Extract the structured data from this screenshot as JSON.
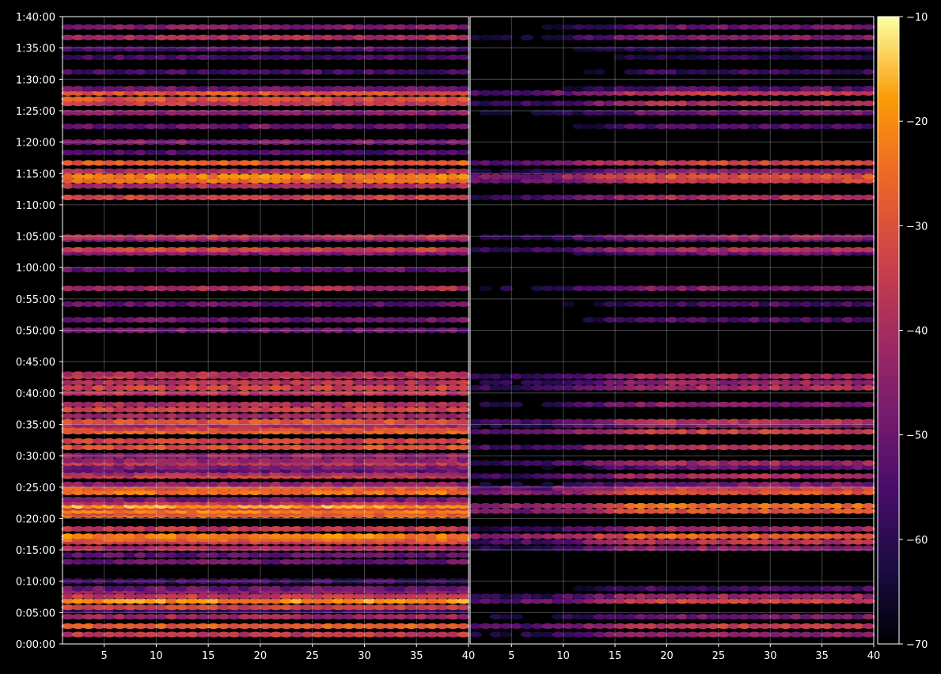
{
  "chart_data": {
    "type": "heatmap",
    "title": "",
    "xlabel": "",
    "ylabel": "",
    "background": "#000000",
    "grid": true,
    "colormap": "inferno",
    "panels": [
      {
        "name": "left",
        "xlim": [
          1,
          40
        ],
        "x_ticks": [
          {
            "value": 5,
            "label": "5"
          },
          {
            "value": 10,
            "label": "10"
          },
          {
            "value": 15,
            "label": "15"
          },
          {
            "value": 20,
            "label": "20"
          },
          {
            "value": 25,
            "label": "25"
          },
          {
            "value": 30,
            "label": "30"
          },
          {
            "value": 35,
            "label": "35"
          },
          {
            "value": 40,
            "label": "40"
          }
        ],
        "bands": [
          {
            "t": 90,
            "v": -36
          },
          {
            "t": 170,
            "v": -28
          },
          {
            "t": 260,
            "v": -42
          },
          {
            "t": 320,
            "v": -58
          },
          {
            "t": 350,
            "v": -34
          },
          {
            "t": 410,
            "v": -20
          },
          {
            "t": 455,
            "v": -36
          },
          {
            "t": 500,
            "v": -46
          },
          {
            "t": 530,
            "v": -50
          },
          {
            "t": 600,
            "v": -58
          },
          {
            "t": 785,
            "v": -50
          },
          {
            "t": 850,
            "v": -52
          },
          {
            "t": 915,
            "v": -40
          },
          {
            "t": 975,
            "v": -34
          },
          {
            "t": 1000,
            "v": -28
          },
          {
            "t": 1030,
            "v": -22
          },
          {
            "t": 1100,
            "v": -36
          },
          {
            "t": 1230,
            "v": -26
          },
          {
            "t": 1250,
            "v": -30
          },
          {
            "t": 1270,
            "v": -22
          },
          {
            "t": 1300,
            "v": -32
          },
          {
            "t": 1320,
            "v": -18
          },
          {
            "t": 1350,
            "v": -36
          },
          {
            "t": 1380,
            "v": -48
          },
          {
            "t": 1450,
            "v": -24
          },
          {
            "t": 1490,
            "v": -28
          },
          {
            "t": 1525,
            "v": -44
          },
          {
            "t": 1605,
            "v": -34
          },
          {
            "t": 1630,
            "v": -40
          },
          {
            "t": 1660,
            "v": -52
          },
          {
            "t": 1690,
            "v": -48
          },
          {
            "t": 1730,
            "v": -36
          },
          {
            "t": 1755,
            "v": -44
          },
          {
            "t": 1800,
            "v": -44
          },
          {
            "t": 1880,
            "v": -30
          },
          {
            "t": 1940,
            "v": -34
          },
          {
            "t": 2030,
            "v": -26
          },
          {
            "t": 2060,
            "v": -32
          },
          {
            "t": 2090,
            "v": -40
          },
          {
            "t": 2125,
            "v": -30
          },
          {
            "t": 2180,
            "v": -42
          },
          {
            "t": 2240,
            "v": -34
          },
          {
            "t": 2290,
            "v": -40
          },
          {
            "t": 2400,
            "v": -38
          },
          {
            "t": 2450,
            "v": -34
          },
          {
            "t": 2500,
            "v": -38
          },
          {
            "t": 2560,
            "v": -36
          },
          {
            "t": 2580,
            "v": -40
          },
          {
            "t": 3000,
            "v": -50
          },
          {
            "t": 3100,
            "v": -50
          },
          {
            "t": 3250,
            "v": -52
          },
          {
            "t": 3400,
            "v": -40
          },
          {
            "t": 3580,
            "v": -52
          },
          {
            "t": 3740,
            "v": -48
          },
          {
            "t": 3770,
            "v": -34
          },
          {
            "t": 3870,
            "v": -48
          },
          {
            "t": 3890,
            "v": -38
          },
          {
            "t": 4270,
            "v": -34
          },
          {
            "t": 4380,
            "v": -40
          },
          {
            "t": 4430,
            "v": -26
          },
          {
            "t": 4470,
            "v": -22
          },
          {
            "t": 4520,
            "v": -40
          },
          {
            "t": 4600,
            "v": -28
          },
          {
            "t": 4700,
            "v": -54
          },
          {
            "t": 4800,
            "v": -48
          },
          {
            "t": 4950,
            "v": -50
          },
          {
            "t": 5080,
            "v": -46
          },
          {
            "t": 5170,
            "v": -36
          },
          {
            "t": 5210,
            "v": -30
          },
          {
            "t": 5270,
            "v": -30
          },
          {
            "t": 5310,
            "v": -50
          },
          {
            "t": 5470,
            "v": -56
          },
          {
            "t": 5610,
            "v": -56
          },
          {
            "t": 5690,
            "v": -54
          },
          {
            "t": 5800,
            "v": -40
          },
          {
            "t": 5900,
            "v": -46
          }
        ]
      },
      {
        "name": "right",
        "xlim": [
          1,
          40
        ],
        "x_ticks": [
          {
            "value": 5,
            "label": "5"
          },
          {
            "value": 10,
            "label": "10"
          },
          {
            "value": 15,
            "label": "15"
          },
          {
            "value": 20,
            "label": "20"
          },
          {
            "value": 25,
            "label": "25"
          },
          {
            "value": 30,
            "label": "30"
          },
          {
            "value": 35,
            "label": "35"
          },
          {
            "value": 40,
            "label": "40"
          }
        ],
        "bands": [
          {
            "t": 90,
            "v": -44
          },
          {
            "t": 170,
            "v": -36
          },
          {
            "t": 260,
            "v": -48
          },
          {
            "t": 410,
            "v": -34
          },
          {
            "t": 455,
            "v": -42
          },
          {
            "t": 530,
            "v": -56
          },
          {
            "t": 915,
            "v": -44
          },
          {
            "t": 975,
            "v": -38
          },
          {
            "t": 1030,
            "v": -28
          },
          {
            "t": 1100,
            "v": -42
          },
          {
            "t": 1270,
            "v": -30
          },
          {
            "t": 1320,
            "v": -26
          },
          {
            "t": 1450,
            "v": -30
          },
          {
            "t": 1490,
            "v": -34
          },
          {
            "t": 1525,
            "v": -48
          },
          {
            "t": 1605,
            "v": -40
          },
          {
            "t": 1690,
            "v": -52
          },
          {
            "t": 1730,
            "v": -42
          },
          {
            "t": 1880,
            "v": -38
          },
          {
            "t": 2030,
            "v": -34
          },
          {
            "t": 2090,
            "v": -46
          },
          {
            "t": 2125,
            "v": -38
          },
          {
            "t": 2290,
            "v": -46
          },
          {
            "t": 2450,
            "v": -40
          },
          {
            "t": 2500,
            "v": -44
          },
          {
            "t": 2560,
            "v": -42
          },
          {
            "t": 3100,
            "v": -54
          },
          {
            "t": 3250,
            "v": -56
          },
          {
            "t": 3400,
            "v": -46
          },
          {
            "t": 3740,
            "v": -52
          },
          {
            "t": 3770,
            "v": -40
          },
          {
            "t": 3870,
            "v": -52
          },
          {
            "t": 3890,
            "v": -44
          },
          {
            "t": 4270,
            "v": -40
          },
          {
            "t": 4430,
            "v": -34
          },
          {
            "t": 4470,
            "v": -30
          },
          {
            "t": 4520,
            "v": -46
          },
          {
            "t": 4600,
            "v": -34
          },
          {
            "t": 4950,
            "v": -54
          },
          {
            "t": 5080,
            "v": -50
          },
          {
            "t": 5170,
            "v": -40
          },
          {
            "t": 5270,
            "v": -36
          },
          {
            "t": 5310,
            "v": -54
          },
          {
            "t": 5470,
            "v": -58
          },
          {
            "t": 5610,
            "v": -60
          },
          {
            "t": 5690,
            "v": -58
          },
          {
            "t": 5800,
            "v": -46
          },
          {
            "t": 5900,
            "v": -50
          }
        ]
      }
    ],
    "y_axis": {
      "ylim": [
        0,
        6000
      ],
      "ticks": [
        {
          "value": 0,
          "label": "0:00:00"
        },
        {
          "value": 300,
          "label": "0:05:00"
        },
        {
          "value": 600,
          "label": "0:10:00"
        },
        {
          "value": 900,
          "label": "0:15:00"
        },
        {
          "value": 1200,
          "label": "0:20:00"
        },
        {
          "value": 1500,
          "label": "0:25:00"
        },
        {
          "value": 1800,
          "label": "0:30:00"
        },
        {
          "value": 2100,
          "label": "0:35:00"
        },
        {
          "value": 2400,
          "label": "0:40:00"
        },
        {
          "value": 2700,
          "label": "0:45:00"
        },
        {
          "value": 3000,
          "label": "0:50:00"
        },
        {
          "value": 3300,
          "label": "0:55:00"
        },
        {
          "value": 3600,
          "label": "1:00:00"
        },
        {
          "value": 3900,
          "label": "1:05:00"
        },
        {
          "value": 4200,
          "label": "1:10:00"
        },
        {
          "value": 4500,
          "label": "1:15:00"
        },
        {
          "value": 4800,
          "label": "1:20:00"
        },
        {
          "value": 5100,
          "label": "1:25:00"
        },
        {
          "value": 5400,
          "label": "1:30:00"
        },
        {
          "value": 5700,
          "label": "1:35:00"
        },
        {
          "value": 6000,
          "label": "1:40:00"
        }
      ]
    },
    "colorbar": {
      "range": [
        -70,
        -10
      ],
      "ticks": [
        {
          "value": -10,
          "label": "−10"
        },
        {
          "value": -20,
          "label": "−20"
        },
        {
          "value": -30,
          "label": "−30"
        },
        {
          "value": -40,
          "label": "−40"
        },
        {
          "value": -50,
          "label": "−50"
        },
        {
          "value": -60,
          "label": "−60"
        },
        {
          "value": -70,
          "label": "−70"
        }
      ]
    }
  }
}
